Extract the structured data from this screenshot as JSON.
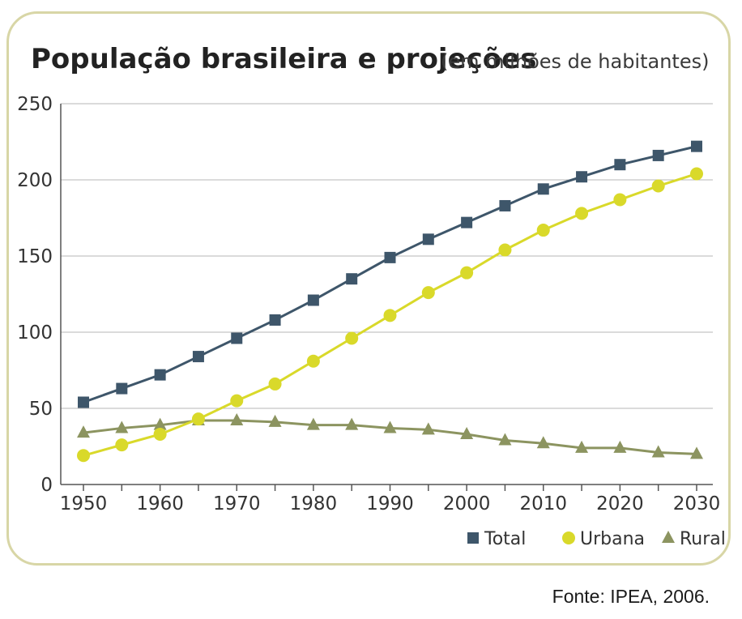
{
  "chart_data": {
    "type": "line",
    "title": "População brasileira e projeções",
    "subtitle": "(em milhões de habitantes)",
    "xlabel": "",
    "ylabel": "",
    "ylim": [
      0,
      250
    ],
    "xlim": [
      1950,
      2030
    ],
    "yticks": [
      "0",
      "50",
      "100",
      "150",
      "200",
      "250"
    ],
    "xticks": [
      "1950",
      "1960",
      "1970",
      "1980",
      "1990",
      "2000",
      "2010",
      "2020",
      "2030"
    ],
    "grid": true,
    "legend_position": "bottom-right",
    "x": [
      1950,
      1955,
      1960,
      1965,
      1970,
      1975,
      1980,
      1985,
      1990,
      1995,
      2000,
      2005,
      2010,
      2015,
      2020,
      2025,
      2030
    ],
    "series": [
      {
        "name": "Total",
        "marker": "square",
        "color": "#3e566a",
        "values": [
          54,
          63,
          72,
          84,
          96,
          108,
          121,
          135,
          149,
          161,
          172,
          183,
          194,
          202,
          210,
          216,
          222
        ]
      },
      {
        "name": "Urbana",
        "marker": "circle",
        "color": "#d9d92a",
        "values": [
          19,
          26,
          33,
          43,
          55,
          66,
          81,
          96,
          111,
          126,
          139,
          154,
          167,
          178,
          187,
          196,
          204
        ]
      },
      {
        "name": "Rural",
        "marker": "triangle",
        "color": "#8c9460",
        "values": [
          34,
          37,
          39,
          42,
          42,
          41,
          39,
          39,
          37,
          36,
          33,
          29,
          27,
          24,
          24,
          21,
          20
        ]
      }
    ]
  },
  "source": "Fonte: IPEA, 2006."
}
